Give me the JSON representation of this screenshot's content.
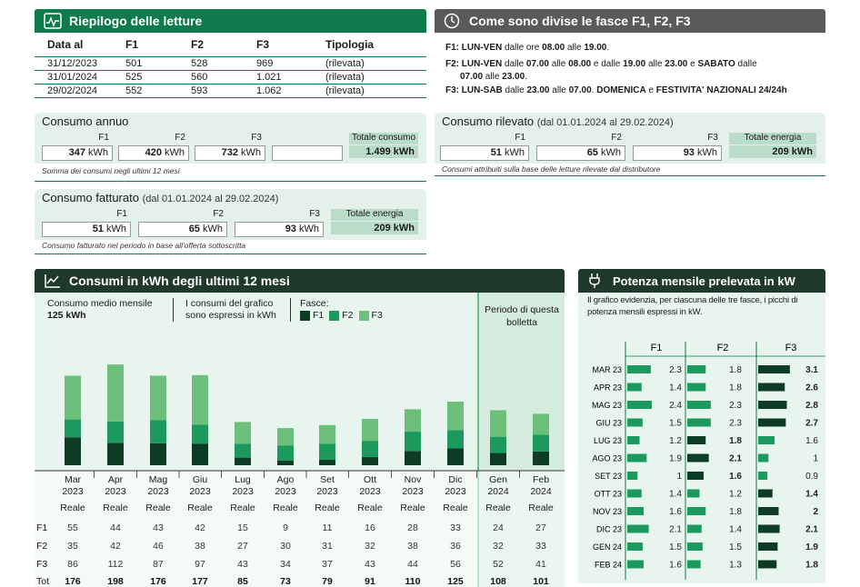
{
  "readings": {
    "title": "Riepilogo delle letture",
    "headers": [
      "Data al",
      "F1",
      "F2",
      "F3",
      "Tipologia"
    ],
    "rows": [
      [
        "31/12/2023",
        "501",
        "528",
        "969",
        "(rilevata)"
      ],
      [
        "31/01/2024",
        "525",
        "560",
        "1.021",
        "(rilevata)"
      ],
      [
        "29/02/2024",
        "552",
        "593",
        "1.062",
        "(rilevata)"
      ]
    ]
  },
  "fasce": {
    "title": "Come sono divise le fasce F1, F2, F3",
    "f1_label": "F1: LUN-VEN",
    "f1_text": " dalle ore ",
    "f1_from": "08.00",
    "f1_mid": " alle ",
    "f1_to": "19.00",
    "f1_end": ".",
    "f2_label": "F2: LUN-VEN",
    "f2_t1": " dalle ",
    "f2_a": "07.00",
    "f2_t2": " alle ",
    "f2_b": "08.00",
    "f2_t3": " e dalle ",
    "f2_c": "19.00",
    "f2_t4": " alle ",
    "f2_d": "23.00",
    "f2_t5": " e ",
    "f2_sat": "SABATO",
    "f2_t6": " dalle",
    "f2_e": "07.00",
    "f2_t7": " alle ",
    "f2_f": "23.00",
    "f2_end": ".",
    "f3_label": "F3: LUN-SAB",
    "f3_t1": " dalle ",
    "f3_a": "23.00",
    "f3_t2": " alle ",
    "f3_b": "07.00",
    "f3_t3": ". ",
    "f3_dom": "DOMENICA",
    "f3_t4": " e ",
    "f3_fest": "FESTIVITA' NAZIONALI 24/24h"
  },
  "consumo_annuo": {
    "title": "Consumo annuo",
    "labels": [
      "F1",
      "F2",
      "F3",
      "",
      "Totale consumo"
    ],
    "values": [
      "347",
      "420",
      "732",
      "",
      "1.499"
    ],
    "unit": "kWh",
    "note": "Somma dei consumi negli ultimi 12 mesi"
  },
  "consumo_rilevato": {
    "title": "Consumo rilevato",
    "period": "(dal 01.01.2024 al 29.02.2024)",
    "labels": [
      "F1",
      "F2",
      "F3",
      "Totale energia"
    ],
    "values": [
      "51",
      "65",
      "93",
      "209"
    ],
    "unit": "kWh",
    "note": "Consumi attribuiti sulla base delle letture rilevate dal distributore"
  },
  "consumo_fatturato": {
    "title": "Consumo fatturato",
    "period": "(dal 01.01.2024 al 29.02.2024)",
    "labels": [
      "F1",
      "F2",
      "F3",
      "Totale energia"
    ],
    "values": [
      "51",
      "65",
      "93",
      "209"
    ],
    "unit": "kWh",
    "note": "Consumo fatturato nel periodo in base all'offerta sottoscritta"
  },
  "consumi_chart": {
    "title": "Consumi in kWh degli ultimi 12 mesi",
    "medio_label": "Consumo medio mensile",
    "medio_value": "125 kWh",
    "info": "I consumi del grafico sono espressi in kWh",
    "fasce_label": "Fasce:",
    "legend": [
      "F1",
      "F2",
      "F3"
    ],
    "periodo_label": "Periodo di questa bolletta",
    "colors": {
      "F1": "#0e3b24",
      "F2": "#1c9a5e",
      "F3": "#6cc07a"
    },
    "row_labels": [
      "F1",
      "F2",
      "F3",
      "Tot"
    ],
    "months": [
      {
        "m": "Mar",
        "y": "2023",
        "t": "Reale"
      },
      {
        "m": "Apr",
        "y": "2023",
        "t": "Reale"
      },
      {
        "m": "Mag",
        "y": "2023",
        "t": "Reale"
      },
      {
        "m": "Giu",
        "y": "2023",
        "t": "Reale"
      },
      {
        "m": "Lug",
        "y": "2023",
        "t": "Reale"
      },
      {
        "m": "Ago",
        "y": "2023",
        "t": "Reale"
      },
      {
        "m": "Set",
        "y": "2023",
        "t": "Reale"
      },
      {
        "m": "Ott",
        "y": "2023",
        "t": "Reale"
      },
      {
        "m": "Nov",
        "y": "2023",
        "t": "Reale"
      },
      {
        "m": "Dic",
        "y": "2023",
        "t": "Reale"
      },
      {
        "m": "Gen",
        "y": "2024",
        "t": "Reale"
      },
      {
        "m": "Feb",
        "y": "2024",
        "t": "Reale"
      }
    ]
  },
  "chart_data": [
    {
      "type": "bar",
      "stacked": true,
      "title": "Consumi in kWh degli ultimi 12 mesi",
      "categories": [
        "Mar 2023",
        "Apr 2023",
        "Mag 2023",
        "Giu 2023",
        "Lug 2023",
        "Ago 2023",
        "Set 2023",
        "Ott 2023",
        "Nov 2023",
        "Dic 2023",
        "Gen 2024",
        "Feb 2024"
      ],
      "series": [
        {
          "name": "F1",
          "values": [
            55,
            44,
            43,
            42,
            15,
            9,
            11,
            16,
            28,
            33,
            24,
            27
          ]
        },
        {
          "name": "F2",
          "values": [
            35,
            42,
            46,
            38,
            27,
            30,
            31,
            32,
            38,
            36,
            32,
            33
          ]
        },
        {
          "name": "F3",
          "values": [
            86,
            112,
            87,
            97,
            43,
            34,
            37,
            43,
            44,
            56,
            52,
            41
          ]
        }
      ],
      "totals": [
        176,
        198,
        176,
        177,
        85,
        73,
        79,
        91,
        110,
        125,
        108,
        101
      ],
      "ylim": [
        0,
        200
      ],
      "grid": false,
      "legend": "top-left"
    },
    {
      "type": "bar",
      "orientation": "horizontal",
      "title": "Potenza mensile prelevata in kW",
      "categories": [
        "MAR 23",
        "APR 23",
        "MAG 23",
        "GIU 23",
        "LUG 23",
        "AGO 23",
        "SET 23",
        "OTT 23",
        "NOV 23",
        "DIC 23",
        "GEN 24",
        "FEB 24"
      ],
      "series": [
        {
          "name": "F1",
          "values": [
            2.3,
            1.4,
            2.4,
            1.5,
            1.2,
            1.9,
            1,
            1.4,
            1.6,
            2.1,
            1.5,
            1.6
          ]
        },
        {
          "name": "F2",
          "values": [
            1.8,
            1.8,
            2.3,
            2.3,
            1.8,
            2.1,
            1.6,
            1.2,
            1.8,
            1.4,
            1.5,
            1.3
          ]
        },
        {
          "name": "F3",
          "values": [
            3.1,
            2.6,
            2.8,
            2.7,
            1.6,
            1,
            0.9,
            1.4,
            2,
            2.1,
            1.9,
            1.8
          ]
        }
      ],
      "peak_fascia": [
        "F3",
        "F3",
        "F3",
        "F3",
        "F2",
        "F2",
        "F2",
        "F3",
        "F3",
        "F3",
        "F3",
        "F3"
      ],
      "xlim": [
        0,
        3.2
      ]
    }
  ],
  "potenza": {
    "title": "Potenza mensile prelevata in kW",
    "desc": "Il grafico evidenzia, per ciascuna delle tre fasce, i picchi di potenza mensili espressi in kW.",
    "headers": [
      "F1",
      "F2",
      "F3"
    ],
    "display": [
      [
        "2.3",
        "1.8",
        "3.1"
      ],
      [
        "1.4",
        "1.8",
        "2.6"
      ],
      [
        "2.4",
        "2.3",
        "2.8"
      ],
      [
        "1.5",
        "2.3",
        "2.7"
      ],
      [
        "1.2",
        "1.8",
        "1.6"
      ],
      [
        "1.9",
        "2.1",
        "1"
      ],
      [
        "1",
        "1.6",
        "0.9"
      ],
      [
        "1.4",
        "1.2",
        "1.4"
      ],
      [
        "1.6",
        "1.8",
        "2"
      ],
      [
        "2.1",
        "1.4",
        "2.1"
      ],
      [
        "1.5",
        "1.5",
        "1.9"
      ],
      [
        "1.6",
        "1.3",
        "1.8"
      ]
    ]
  }
}
